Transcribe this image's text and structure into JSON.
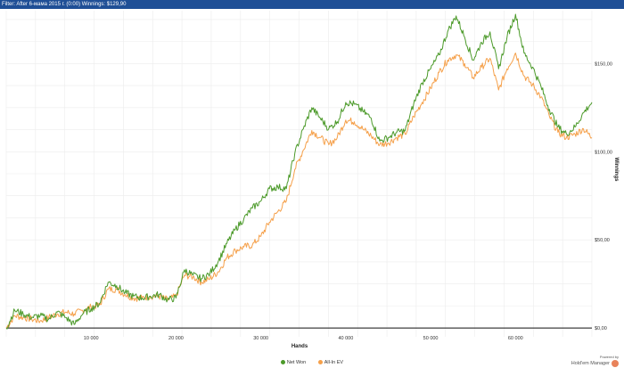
{
  "header": {
    "filter_text": "Filter: After 6-мама 2015 г. (0:00)  Winnings: $129,90"
  },
  "chart_data": {
    "type": "line",
    "xlabel": "Hands",
    "ylabel": "Winnings",
    "xlim": [
      0,
      69000
    ],
    "ylim": [
      -5,
      180
    ],
    "x_ticks": [
      10000,
      20000,
      30000,
      40000,
      50000,
      60000
    ],
    "x_tick_labels": [
      "10 000",
      "20 000",
      "30 000",
      "40 000",
      "50 000",
      "60 000"
    ],
    "y_ticks": [
      0,
      50,
      100,
      150
    ],
    "y_tick_labels": [
      "$0,00",
      "$50,00",
      "$100,00",
      "$150,00"
    ],
    "grid": true,
    "legend_position": "bottom",
    "series": [
      {
        "name": "Net Won",
        "color": "#4c9a2a",
        "x": [
          0,
          1000,
          2000,
          3000,
          4000,
          5000,
          6000,
          7000,
          8000,
          9000,
          10000,
          11000,
          12000,
          13000,
          14000,
          15000,
          16000,
          17000,
          18000,
          19000,
          20000,
          21000,
          22000,
          23000,
          24000,
          25000,
          26000,
          27000,
          28000,
          29000,
          30000,
          31000,
          32000,
          33000,
          34000,
          35000,
          36000,
          37000,
          38000,
          39000,
          40000,
          41000,
          42000,
          43000,
          44000,
          45000,
          46000,
          47000,
          48000,
          49000,
          50000,
          51000,
          52000,
          53000,
          54000,
          55000,
          56000,
          57000,
          58000,
          59000,
          60000,
          61000,
          62000,
          63000,
          64000,
          65000,
          66000,
          67000,
          68000,
          69000
        ],
        "values": [
          0,
          10,
          8,
          6,
          7,
          5,
          9,
          6,
          2,
          8,
          11,
          14,
          26,
          24,
          20,
          18,
          17,
          18,
          19,
          16,
          17,
          33,
          30,
          28,
          31,
          38,
          48,
          56,
          62,
          68,
          72,
          79,
          80,
          79,
          99,
          113,
          125,
          119,
          113,
          117,
          128,
          127,
          123,
          119,
          106,
          108,
          111,
          112,
          127,
          139,
          147,
          155,
          168,
          177,
          165,
          152,
          162,
          168,
          147,
          165,
          178,
          156,
          148,
          137,
          124,
          114,
          110,
          114,
          122,
          128
        ]
      },
      {
        "name": "All-In EV",
        "color": "#f5a04a",
        "x": [
          0,
          1000,
          2000,
          3000,
          4000,
          5000,
          6000,
          7000,
          8000,
          9000,
          10000,
          11000,
          12000,
          13000,
          14000,
          15000,
          16000,
          17000,
          18000,
          19000,
          20000,
          21000,
          22000,
          23000,
          24000,
          25000,
          26000,
          27000,
          28000,
          29000,
          30000,
          31000,
          32000,
          33000,
          34000,
          35000,
          36000,
          37000,
          38000,
          39000,
          40000,
          41000,
          42000,
          43000,
          44000,
          45000,
          46000,
          47000,
          48000,
          49000,
          50000,
          51000,
          52000,
          53000,
          54000,
          55000,
          56000,
          57000,
          58000,
          59000,
          60000,
          61000,
          62000,
          63000,
          64000,
          65000,
          66000,
          67000,
          68000,
          69000
        ],
        "values": [
          0,
          7,
          6,
          5,
          4,
          6,
          8,
          9,
          8,
          10,
          12,
          13,
          22,
          22,
          19,
          17,
          17,
          18,
          18,
          16,
          18,
          30,
          29,
          26,
          28,
          32,
          40,
          44,
          46,
          47,
          52,
          60,
          66,
          72,
          90,
          101,
          112,
          108,
          104,
          108,
          118,
          117,
          113,
          109,
          104,
          105,
          108,
          110,
          120,
          128,
          136,
          145,
          152,
          155,
          150,
          142,
          148,
          153,
          135,
          147,
          156,
          143,
          138,
          131,
          120,
          111,
          108,
          110,
          113,
          108
        ]
      }
    ]
  },
  "legend": {
    "items": [
      {
        "label": "Net Won",
        "color": "#4c9a2a"
      },
      {
        "label": "All-In EV",
        "color": "#f5a04a"
      }
    ]
  },
  "brand": {
    "powered_by": "Powered by",
    "name": "Hold'em Manager"
  }
}
